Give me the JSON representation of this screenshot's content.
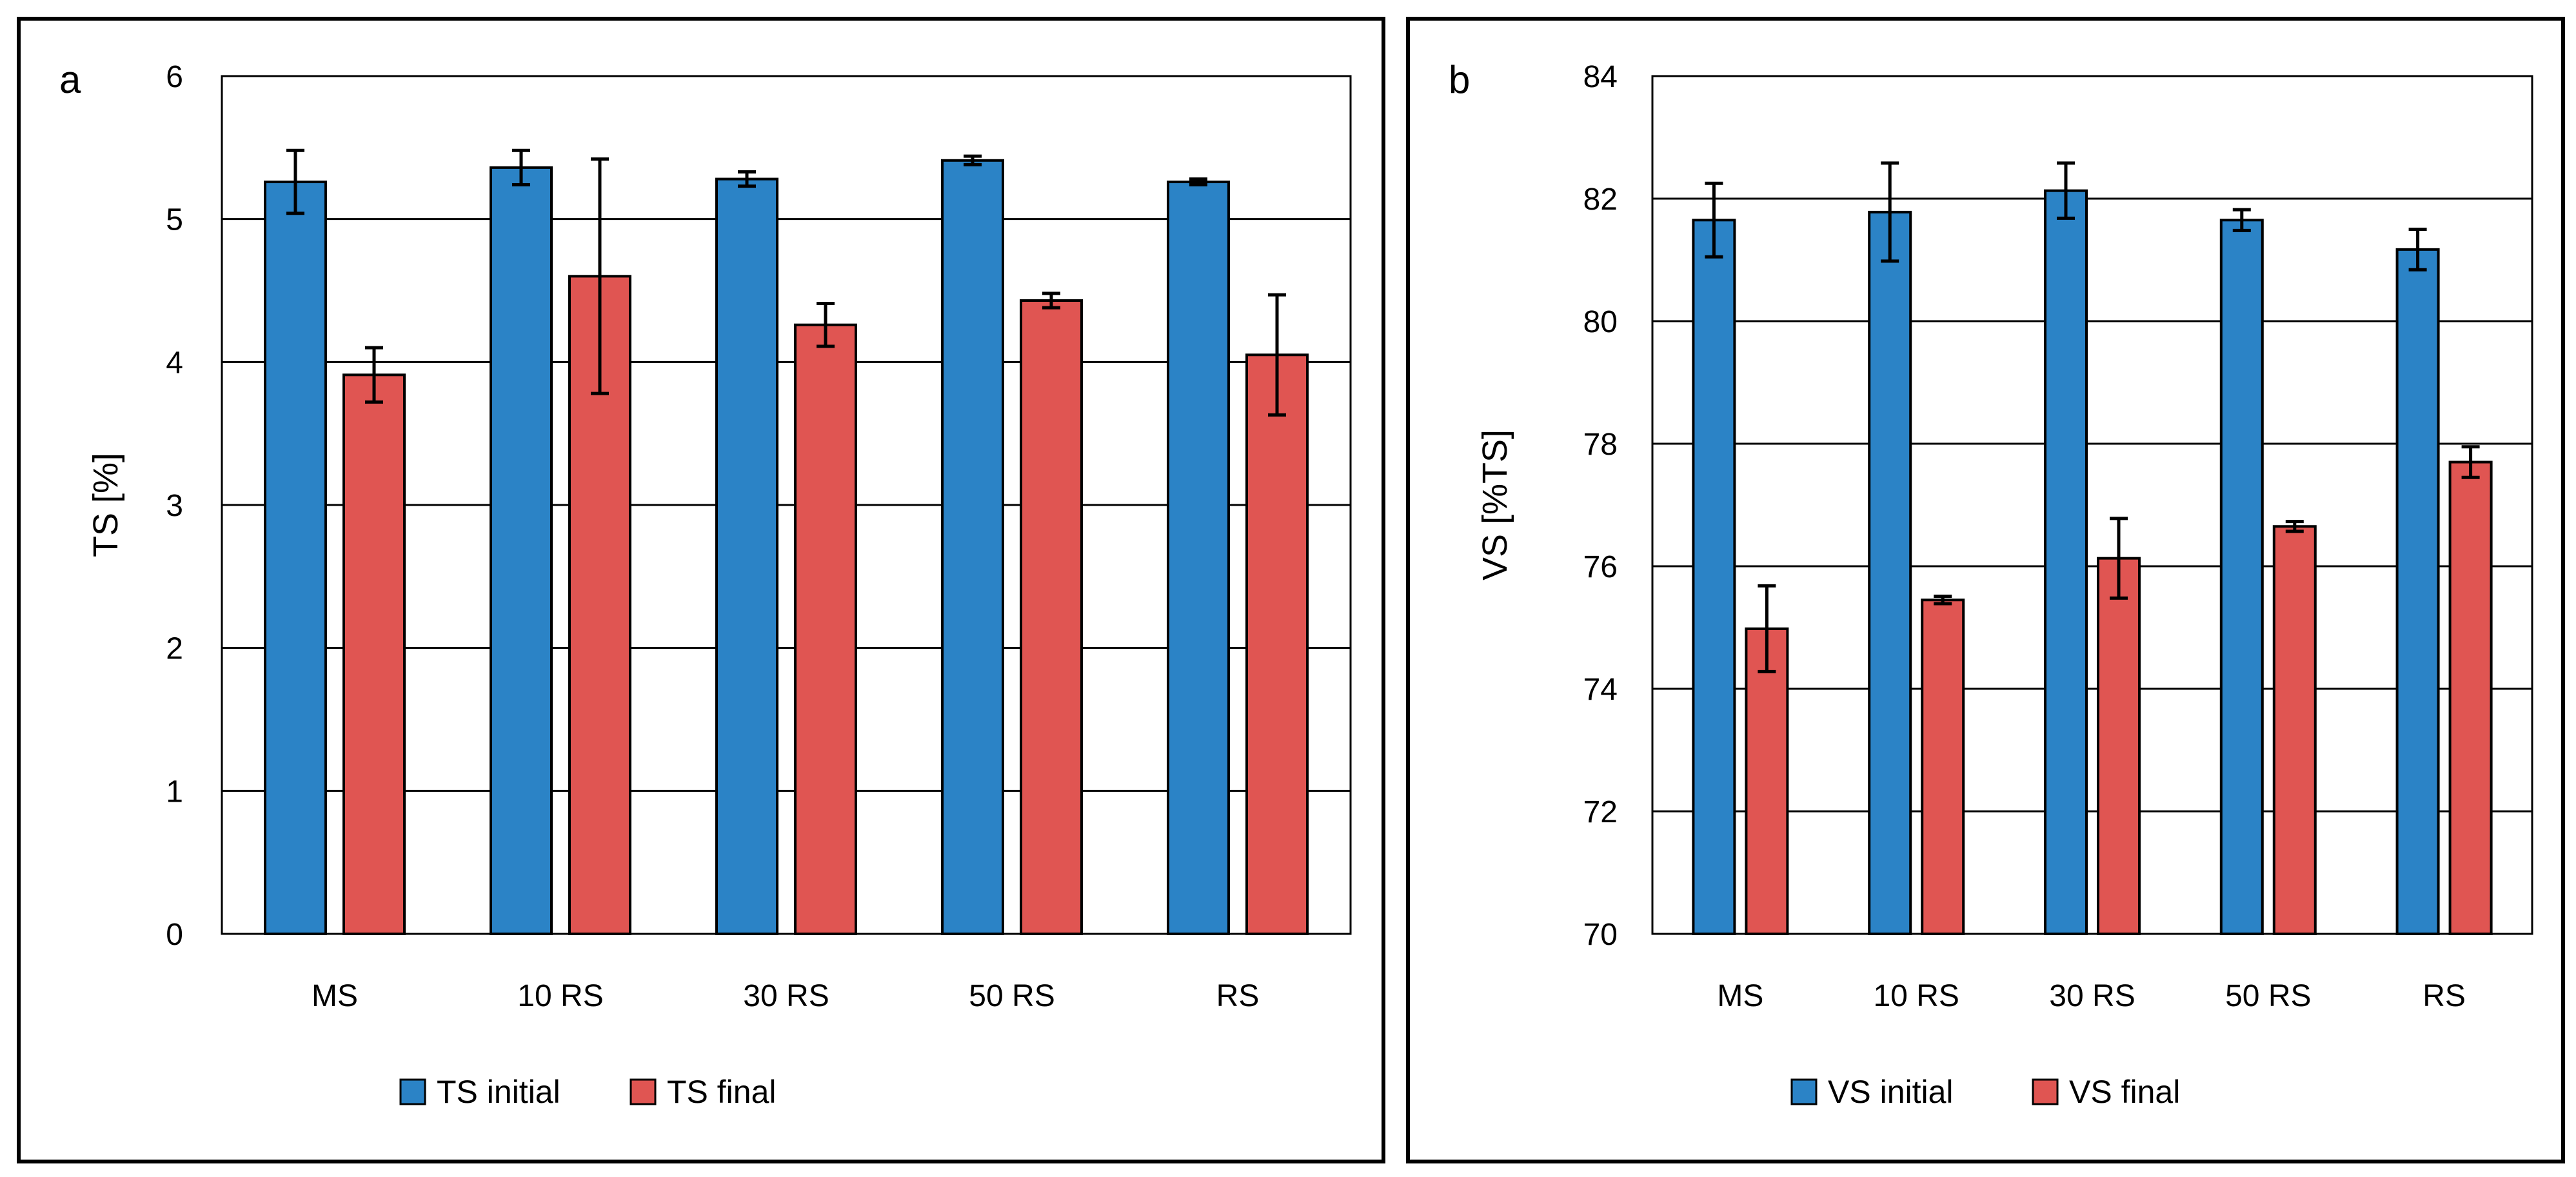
{
  "colors": {
    "initial": "#2B83C6",
    "final": "#E05552",
    "axis": "#000000",
    "grid": "#000000"
  },
  "chart_data": [
    {
      "type": "bar",
      "panel_label": "a",
      "title": "",
      "xlabel": "",
      "ylabel": "TS [%]",
      "ylim": [
        0,
        6
      ],
      "yticks": [
        0,
        1,
        2,
        3,
        4,
        5,
        6
      ],
      "ytick_labels": [
        "0",
        "1",
        "2",
        "3",
        "4",
        "5",
        "6"
      ],
      "grid": true,
      "legend_position": "bottom",
      "categories": [
        "MS",
        "10 RS",
        "30 RS",
        "50 RS",
        "RS"
      ],
      "series": [
        {
          "name": "TS initial",
          "color_key": "initial",
          "values": [
            5.26,
            5.36,
            5.28,
            5.41,
            5.26
          ],
          "errors": [
            0.22,
            0.12,
            0.05,
            0.03,
            0.02
          ]
        },
        {
          "name": "TS final",
          "color_key": "final",
          "values": [
            3.91,
            4.6,
            4.26,
            4.43,
            4.05
          ],
          "errors": [
            0.19,
            0.82,
            0.15,
            0.05,
            0.42
          ]
        }
      ]
    },
    {
      "type": "bar",
      "panel_label": "b",
      "title": "",
      "xlabel": "",
      "ylabel": "VS [%TS]",
      "ylim": [
        70,
        84
      ],
      "yticks": [
        70,
        72,
        74,
        76,
        78,
        80,
        82,
        84
      ],
      "ytick_labels": [
        "70",
        "72",
        "74",
        "76",
        "78",
        "80",
        "82",
        "84"
      ],
      "grid": true,
      "legend_position": "bottom",
      "categories": [
        "MS",
        "10 RS",
        "30 RS",
        "50 RS",
        "RS"
      ],
      "series": [
        {
          "name": "VS initial",
          "color_key": "initial",
          "values": [
            81.65,
            81.78,
            82.13,
            81.65,
            81.17
          ],
          "errors": [
            0.6,
            0.8,
            0.45,
            0.17,
            0.33
          ]
        },
        {
          "name": "VS final",
          "color_key": "final",
          "values": [
            74.98,
            75.45,
            76.13,
            76.65,
            77.7
          ],
          "errors": [
            0.7,
            0.06,
            0.65,
            0.08,
            0.25
          ]
        }
      ]
    }
  ]
}
